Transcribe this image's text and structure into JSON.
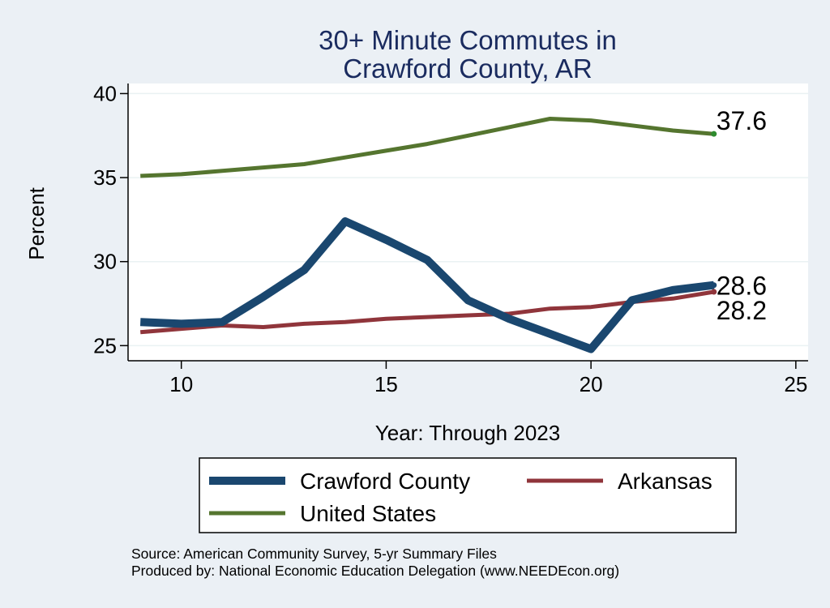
{
  "chart_data": {
    "type": "line",
    "title": [
      "30+ Minute Commutes in",
      "Crawford County, AR"
    ],
    "xlabel": "Year: Through 2023",
    "ylabel": "Percent",
    "xlim": [
      8.7,
      25.3
    ],
    "ylim": [
      24.1,
      40.6
    ],
    "xticks": [
      10,
      15,
      20,
      25
    ],
    "yticks": [
      25,
      30,
      35,
      40
    ],
    "grid": true,
    "legend_position": "bottom",
    "series": [
      {
        "name": "Crawford County",
        "color": "#1a476f",
        "x": [
          9,
          10,
          11,
          12,
          13,
          14,
          15,
          16,
          17,
          18,
          19,
          20,
          21,
          22,
          23
        ],
        "values": [
          26.4,
          26.3,
          26.4,
          27.9,
          29.5,
          32.4,
          31.3,
          30.1,
          27.7,
          26.6,
          25.7,
          24.8,
          27.7,
          28.3,
          28.6
        ],
        "end_label": "28.6"
      },
      {
        "name": "Arkansas",
        "color": "#90353b",
        "x": [
          9,
          10,
          11,
          12,
          13,
          14,
          15,
          16,
          17,
          18,
          19,
          20,
          21,
          22,
          23
        ],
        "values": [
          25.8,
          26.0,
          26.2,
          26.1,
          26.3,
          26.4,
          26.6,
          26.7,
          26.8,
          26.9,
          27.2,
          27.3,
          27.6,
          27.8,
          28.2
        ],
        "end_label": "28.2"
      },
      {
        "name": "United States",
        "color": "#55752f",
        "x": [
          9,
          10,
          11,
          12,
          13,
          14,
          15,
          16,
          17,
          18,
          19,
          20,
          21,
          22,
          23
        ],
        "values": [
          35.1,
          35.2,
          35.4,
          35.6,
          35.8,
          36.2,
          36.6,
          37.0,
          37.5,
          38.0,
          38.5,
          38.4,
          38.1,
          37.8,
          37.6
        ],
        "end_label": "37.6"
      }
    ],
    "notes": [
      "Source: American Community Survey, 5-yr Summary Files",
      "Produced by: National Economic Education Delegation (www.NEEDEcon.org)"
    ]
  }
}
